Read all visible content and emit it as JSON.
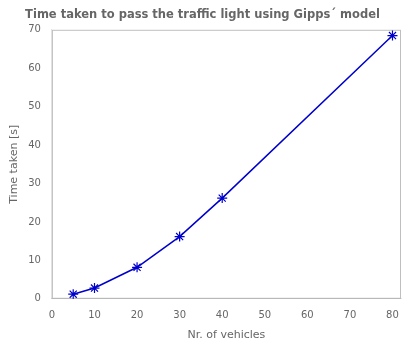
{
  "chart_data": {
    "type": "line",
    "title": "Time taken to pass the traffic light using Gipps´ model",
    "xlabel": "Nr. of vehicles",
    "ylabel": "Time taken [s]",
    "x": [
      5,
      10,
      20,
      30,
      40,
      80
    ],
    "values": [
      1.2,
      2.8,
      8.2,
      16.2,
      26.2,
      68.5
    ],
    "color": "#0000CC",
    "marker": "star",
    "xlim": [
      0,
      82
    ],
    "ylim": [
      0,
      70
    ],
    "xticks": [
      0,
      10,
      20,
      30,
      40,
      50,
      60,
      70,
      80
    ],
    "yticks": [
      0,
      10,
      20,
      30,
      40,
      50,
      60,
      70
    ],
    "grid": false
  }
}
